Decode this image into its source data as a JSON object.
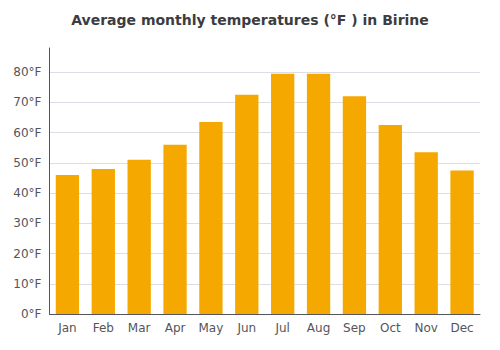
{
  "chart_data": {
    "type": "bar",
    "title": "Average monthly temperatures (°F ) in Birine",
    "categories": [
      "Jan",
      "Feb",
      "Mar",
      "Apr",
      "May",
      "Jun",
      "Jul",
      "Aug",
      "Sep",
      "Oct",
      "Nov",
      "Dec"
    ],
    "values": [
      46,
      48,
      51,
      56,
      63.5,
      72.5,
      79.5,
      79.5,
      72,
      62.5,
      53.5,
      47.5
    ],
    "color": "#F5A800",
    "ylim": [
      0,
      88
    ],
    "yticks": [
      {
        "value": 0,
        "label": "0°F"
      },
      {
        "value": 10,
        "label": "10°F"
      },
      {
        "value": 20,
        "label": "20°F"
      },
      {
        "value": 30,
        "label": "30°F"
      },
      {
        "value": 40,
        "label": "40°F"
      },
      {
        "value": 50,
        "label": "50°F"
      },
      {
        "value": 60,
        "label": "60°F"
      },
      {
        "value": 70,
        "label": "70°F"
      },
      {
        "value": 80,
        "label": "80°F"
      }
    ],
    "grid": true
  }
}
